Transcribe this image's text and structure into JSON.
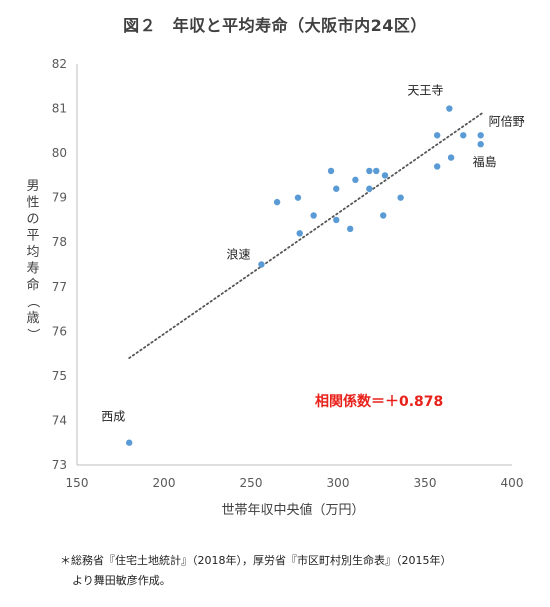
{
  "title": "図２　年収と平均寿命（大阪市内24区）",
  "footnote": {
    "line1": "＊総務省『住宅土地統計』（2018年），厚労省『市区町村別生命表』（2015年）",
    "line2": "より舞田敏彦作成。"
  },
  "chart_data": {
    "type": "scatter",
    "xlabel": "世帯年収中央値（万円）",
    "ylabel": "男性の平均寿命（歳）",
    "xlim": [
      150,
      400
    ],
    "ylim": [
      73,
      82
    ],
    "xticks": [
      150,
      200,
      250,
      300,
      350,
      400
    ],
    "yticks": [
      73,
      74,
      75,
      76,
      77,
      78,
      79,
      80,
      81,
      82
    ],
    "grid": false,
    "point_color": "#5b9bd5",
    "trendline": {
      "style": "dotted",
      "color": "#555555",
      "from": [
        180,
        75.4
      ],
      "to": [
        383,
        80.9
      ]
    },
    "annotation": {
      "text": "相関係数＝＋0.878",
      "color": "#e8211b"
    },
    "points": [
      {
        "x": 180,
        "y": 73.5,
        "label": "西成"
      },
      {
        "x": 256,
        "y": 77.5,
        "label": "浪速"
      },
      {
        "x": 265,
        "y": 78.9,
        "label": ""
      },
      {
        "x": 277,
        "y": 79.0,
        "label": ""
      },
      {
        "x": 278,
        "y": 78.2,
        "label": ""
      },
      {
        "x": 286,
        "y": 78.6,
        "label": ""
      },
      {
        "x": 296,
        "y": 79.6,
        "label": ""
      },
      {
        "x": 299,
        "y": 79.2,
        "label": ""
      },
      {
        "x": 299,
        "y": 78.5,
        "label": ""
      },
      {
        "x": 307,
        "y": 78.3,
        "label": ""
      },
      {
        "x": 310,
        "y": 79.4,
        "label": ""
      },
      {
        "x": 318,
        "y": 79.6,
        "label": ""
      },
      {
        "x": 318,
        "y": 79.2,
        "label": ""
      },
      {
        "x": 322,
        "y": 79.6,
        "label": ""
      },
      {
        "x": 326,
        "y": 78.6,
        "label": ""
      },
      {
        "x": 327,
        "y": 79.5,
        "label": ""
      },
      {
        "x": 336,
        "y": 79.0,
        "label": ""
      },
      {
        "x": 357,
        "y": 80.4,
        "label": ""
      },
      {
        "x": 357,
        "y": 79.7,
        "label": ""
      },
      {
        "x": 364,
        "y": 81.0,
        "label": "天王寺"
      },
      {
        "x": 365,
        "y": 79.9,
        "label": ""
      },
      {
        "x": 372,
        "y": 80.4,
        "label": ""
      },
      {
        "x": 382,
        "y": 80.4,
        "label": "阿倍野"
      },
      {
        "x": 382,
        "y": 80.2,
        "label": "福島"
      }
    ]
  }
}
